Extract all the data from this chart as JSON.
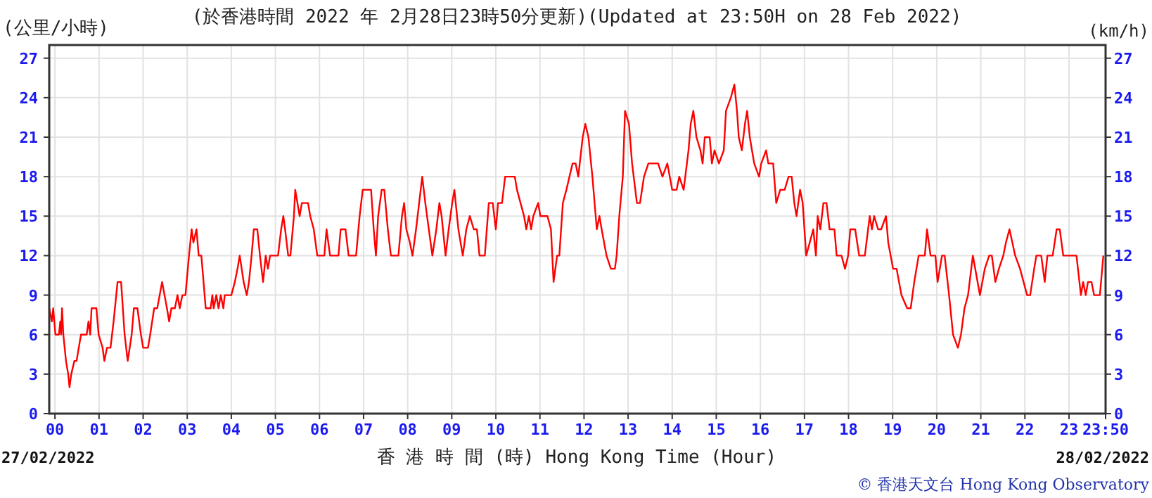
{
  "chart_data": {
    "type": "line",
    "title": "(於香港時間 2022 年 2月28日23時50分更新)(Updated at 23:50H on 28 Feb 2022)",
    "ylabel": "(公里/小時)",
    "y2label": "(km/h)",
    "xlabel": "香 港 時 間 (時) Hong Kong Time (Hour)",
    "annotations": [
      "27/02/2022",
      "28/02/2022",
      "© 香港天文台 Hong Kong Observatory"
    ],
    "xlim": [
      -0.13,
      23.83
    ],
    "ylim": [
      0,
      28
    ],
    "y2lim": [
      0,
      28
    ],
    "xticks": [
      {
        "value": 0,
        "label": "00"
      },
      {
        "value": 1,
        "label": "01"
      },
      {
        "value": 2,
        "label": "02"
      },
      {
        "value": 3,
        "label": "03"
      },
      {
        "value": 4,
        "label": "04"
      },
      {
        "value": 5,
        "label": "05"
      },
      {
        "value": 6,
        "label": "06"
      },
      {
        "value": 7,
        "label": "07"
      },
      {
        "value": 8,
        "label": "08"
      },
      {
        "value": 9,
        "label": "09"
      },
      10,
      11,
      12,
      13,
      14,
      15,
      16,
      17,
      18,
      19,
      20,
      21,
      22,
      23,
      {
        "value": 23.83,
        "label": "23:50"
      }
    ],
    "yticks": [
      0,
      3,
      6,
      9,
      12,
      15,
      18,
      21,
      24,
      27
    ],
    "y2ticks": [
      0,
      3,
      6,
      9,
      12,
      15,
      18,
      21,
      24,
      27
    ],
    "grid": true,
    "x": [
      -0.13,
      -0.07,
      -0.04,
      0.01,
      0.09,
      0.12,
      0.14,
      0.16,
      0.19,
      0.25,
      0.3,
      0.33,
      0.37,
      0.44,
      0.49,
      0.54,
      0.59,
      0.72,
      0.76,
      0.8,
      0.83,
      0.94,
      0.99,
      1.08,
      1.12,
      1.18,
      1.26,
      1.33,
      1.42,
      1.5,
      1.58,
      1.65,
      1.74,
      1.79,
      1.87,
      1.95,
      2.0,
      2.11,
      2.16,
      2.25,
      2.32,
      2.43,
      2.54,
      2.59,
      2.64,
      2.72,
      2.78,
      2.83,
      2.89,
      2.96,
      3.04,
      3.1,
      3.14,
      3.21,
      3.26,
      3.32,
      3.42,
      3.53,
      3.57,
      3.6,
      3.66,
      3.71,
      3.76,
      3.82,
      3.85,
      4.0,
      4.08,
      4.14,
      4.19,
      4.28,
      4.35,
      4.4,
      4.46,
      4.51,
      4.59,
      4.65,
      4.72,
      4.78,
      4.83,
      4.88,
      5.06,
      5.13,
      5.18,
      5.22,
      5.29,
      5.34,
      5.42,
      5.45,
      5.5,
      5.55,
      5.6,
      5.74,
      5.79,
      5.87,
      5.95,
      6.11,
      6.16,
      6.24,
      6.32,
      6.43,
      6.48,
      6.59,
      6.66,
      6.83,
      6.91,
      6.98,
      7.17,
      7.23,
      7.28,
      7.33,
      7.41,
      7.47,
      7.55,
      7.62,
      7.71,
      7.79,
      7.87,
      7.92,
      7.97,
      8.05,
      8.11,
      8.19,
      8.26,
      8.33,
      8.4,
      8.48,
      8.56,
      8.65,
      8.72,
      8.77,
      8.86,
      8.93,
      9.01,
      9.06,
      9.15,
      9.25,
      9.33,
      9.41,
      9.5,
      9.57,
      9.63,
      9.75,
      9.84,
      9.93,
      10.0,
      10.05,
      10.14,
      10.21,
      10.43,
      10.48,
      10.56,
      10.64,
      10.69,
      10.75,
      10.8,
      10.85,
      10.96,
      11.01,
      11.17,
      11.25,
      11.31,
      11.39,
      11.44,
      11.52,
      11.6,
      11.67,
      11.74,
      11.81,
      11.87,
      11.97,
      12.03,
      12.1,
      12.19,
      12.29,
      12.35,
      12.4,
      12.51,
      12.61,
      12.7,
      12.74,
      12.8,
      12.88,
      12.93,
      13.02,
      13.09,
      13.2,
      13.27,
      13.36,
      13.46,
      13.68,
      13.78,
      13.89,
      14.0,
      14.1,
      14.16,
      14.26,
      14.37,
      14.42,
      14.48,
      14.55,
      14.64,
      14.69,
      14.74,
      14.85,
      14.9,
      14.96,
      15.06,
      15.17,
      15.22,
      15.33,
      15.41,
      15.47,
      15.51,
      15.58,
      15.65,
      15.7,
      15.76,
      15.81,
      15.86,
      15.97,
      16.02,
      16.13,
      16.18,
      16.29,
      16.36,
      16.45,
      16.55,
      16.64,
      16.71,
      16.77,
      16.82,
      16.9,
      16.96,
      17.0,
      17.04,
      17.2,
      17.26,
      17.3,
      17.36,
      17.43,
      17.5,
      17.57,
      17.68,
      17.73,
      17.84,
      17.92,
      17.99,
      18.04,
      18.15,
      18.24,
      18.37,
      18.48,
      18.53,
      18.58,
      18.67,
      18.74,
      18.85,
      18.9,
      19.01,
      19.09,
      19.2,
      19.33,
      19.41,
      19.49,
      19.59,
      19.73,
      19.78,
      19.86,
      19.97,
      20.02,
      20.12,
      20.18,
      20.28,
      20.37,
      20.48,
      20.55,
      20.63,
      20.71,
      20.82,
      20.98,
      21.09,
      21.19,
      21.25,
      21.33,
      21.41,
      21.51,
      21.57,
      21.65,
      21.78,
      21.89,
      22.05,
      22.12,
      22.21,
      22.26,
      22.37,
      22.45,
      22.51,
      22.63,
      22.72,
      22.79,
      22.87,
      23.17,
      23.27,
      23.32,
      23.38,
      23.43,
      23.51,
      23.57,
      23.7,
      23.78
    ],
    "series": [
      {
        "color": "#ff0000",
        "values": [
          8,
          7,
          8,
          6,
          6,
          7,
          6,
          8,
          6,
          4,
          3,
          2,
          3,
          4,
          4,
          5,
          6,
          6,
          7,
          6,
          8,
          8,
          6,
          5,
          4,
          5,
          5,
          7,
          10,
          10,
          6,
          4,
          6,
          8,
          8,
          6,
          5,
          5,
          6,
          8,
          8,
          10,
          8,
          7,
          8,
          8,
          9,
          8,
          9,
          9,
          12,
          14,
          13,
          14,
          12,
          12,
          8,
          8,
          9,
          8,
          9,
          8,
          9,
          8,
          9,
          9,
          10,
          11,
          12,
          10,
          9,
          10,
          12,
          14,
          14,
          12,
          10,
          12,
          11,
          12,
          12,
          14,
          15,
          14,
          12,
          12,
          15,
          17,
          16,
          15,
          16,
          16,
          15,
          14,
          12,
          12,
          14,
          12,
          12,
          12,
          14,
          14,
          12,
          12,
          15,
          17,
          17,
          14,
          12,
          15,
          17,
          17,
          14,
          12,
          12,
          12,
          15,
          16,
          14,
          13,
          12,
          14,
          16,
          18,
          16,
          14,
          12,
          14,
          16,
          15,
          12,
          14,
          16,
          17,
          14,
          12,
          14,
          15,
          14,
          14,
          12,
          12,
          16,
          16,
          14,
          16,
          16,
          18,
          18,
          17,
          16,
          15,
          14,
          15,
          14,
          15,
          16,
          15,
          15,
          14,
          10,
          12,
          12,
          16,
          17,
          18,
          19,
          19,
          18,
          21,
          22,
          21,
          18,
          14,
          15,
          14,
          12,
          11,
          11,
          12,
          15,
          18,
          23,
          22,
          19,
          16,
          16,
          18,
          19,
          19,
          18,
          19,
          17,
          17,
          18,
          17,
          20,
          22,
          23,
          21,
          20,
          19,
          21,
          21,
          19,
          20,
          19,
          20,
          23,
          24,
          25,
          23,
          21,
          20,
          22,
          23,
          21,
          20,
          19,
          18,
          19,
          20,
          19,
          19,
          16,
          17,
          17,
          18,
          18,
          16,
          15,
          17,
          16,
          14,
          12,
          14,
          12,
          15,
          14,
          16,
          16,
          14,
          14,
          12,
          12,
          11,
          12,
          14,
          14,
          12,
          12,
          15,
          14,
          15,
          14,
          14,
          15,
          13,
          11,
          11,
          9,
          8,
          8,
          10,
          12,
          12,
          14,
          12,
          12,
          10,
          12,
          12,
          9,
          6,
          5,
          6,
          8,
          9,
          12,
          9,
          11,
          12,
          12,
          10,
          11,
          12,
          13,
          14,
          12,
          11,
          9,
          9,
          11,
          12,
          12,
          10,
          12,
          12,
          14,
          14,
          12,
          12,
          9,
          10,
          9,
          10,
          10,
          9,
          9,
          12
        ]
      }
    ]
  }
}
